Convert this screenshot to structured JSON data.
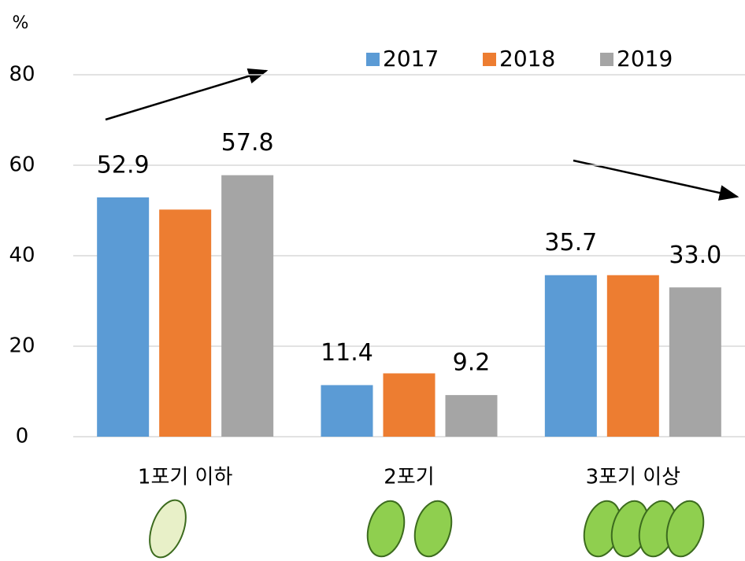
{
  "chart_data": {
    "type": "bar",
    "y_label": "%",
    "categories": [
      "1포기 이하",
      "2포기",
      "3포기 이상"
    ],
    "series": [
      {
        "name": "2017",
        "color": "#5b9bd5",
        "values": [
          52.9,
          11.4,
          35.7
        ],
        "value_labels": [
          "52.9",
          "11.4",
          "35.7"
        ]
      },
      {
        "name": "2018",
        "color": "#ed7d31",
        "values": [
          50.2,
          14.0,
          35.7
        ]
      },
      {
        "name": "2019",
        "color": "#a5a5a5",
        "values": [
          57.8,
          9.2,
          33.0
        ],
        "value_labels": [
          "57.8",
          "9.2",
          "33.0"
        ]
      }
    ],
    "ylim": [
      0,
      80
    ],
    "yticks": [
      0,
      20,
      40,
      60,
      80
    ],
    "grid": true
  }
}
